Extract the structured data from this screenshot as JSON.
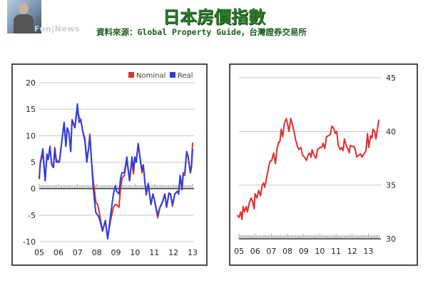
{
  "header": {
    "title": "日本房價指數",
    "subtitle": "資料來源：Global Property Guide，台灣證券交易所",
    "watermark": "Fun|News"
  },
  "colors": {
    "title": "#2c7a2c",
    "nominal": "#e0302a",
    "real": "#2a3fe0",
    "index": "#e0302a",
    "grid": "#c8c8c8"
  },
  "chart_data": [
    {
      "type": "line",
      "legend": "top-right",
      "grid": true,
      "xlim": [
        2005,
        2013
      ],
      "ylim": [
        -10,
        20
      ],
      "xticks": [
        {
          "v": 2005,
          "label": "05"
        },
        {
          "v": 2006,
          "label": "06"
        },
        {
          "v": 2007,
          "label": "07"
        },
        {
          "v": 2008,
          "label": "08"
        },
        {
          "v": 2009,
          "label": "09"
        },
        {
          "v": 2010,
          "label": "10"
        },
        {
          "v": 2011,
          "label": "11"
        },
        {
          "v": 2012,
          "label": "12"
        },
        {
          "v": 2013,
          "label": "13"
        }
      ],
      "yticks": [
        {
          "v": 20,
          "label": "20"
        },
        {
          "v": 15,
          "label": "15"
        },
        {
          "v": 10,
          "label": "10"
        },
        {
          "v": 5,
          "label": "5"
        },
        {
          "v": 0,
          "label": "0"
        },
        {
          "v": -5,
          "label": "-5"
        },
        {
          "v": -10,
          "label": "-10"
        }
      ],
      "x": [
        2005.0,
        2005.06,
        2005.19,
        2005.31,
        2005.4,
        2005.47,
        2005.56,
        2005.65,
        2005.74,
        2005.81,
        2005.89,
        2006.05,
        2006.18,
        2006.3,
        2006.39,
        2006.46,
        2006.55,
        2006.64,
        2006.71,
        2006.86,
        2006.99,
        2007.08,
        2007.17,
        2007.26,
        2007.38,
        2007.48,
        2007.57,
        2007.64,
        2007.73,
        2007.82,
        2007.95,
        2008.05,
        2008.13,
        2008.3,
        2008.45,
        2008.57,
        2008.72,
        2008.87,
        2008.97,
        2009.04,
        2009.16,
        2009.24,
        2009.32,
        2009.44,
        2009.57,
        2009.71,
        2009.84,
        2009.91,
        2009.99,
        2010.06,
        2010.16,
        2010.27,
        2010.36,
        2010.43,
        2010.52,
        2010.58,
        2010.68,
        2010.83,
        2010.93,
        2011.03,
        2011.18,
        2011.3,
        2011.43,
        2011.55,
        2011.64,
        2011.76,
        2011.85,
        2011.95,
        2012.07,
        2012.2,
        2012.27,
        2012.35,
        2012.44,
        2012.51,
        2012.59,
        2012.69,
        2012.77,
        2012.88,
        2012.94,
        2013.0
      ],
      "series": [
        {
          "name": "Nominal",
          "color": "#e0302a",
          "values": [
            1.8,
            5,
            6.5,
            1.5,
            6.5,
            5.5,
            7.8,
            4.5,
            4,
            7.8,
            5.5,
            5,
            9,
            12.5,
            8,
            11.5,
            10.5,
            7,
            13,
            11.5,
            15,
            13.5,
            13,
            11,
            9.5,
            5.5,
            7.5,
            10.3,
            5,
            1.5,
            -2.5,
            -3,
            -4.5,
            -8,
            -6,
            -9.3,
            -6,
            -3.5,
            -3,
            -3,
            -3.5,
            0,
            2,
            2.5,
            5.5,
            1.5,
            5.5,
            2.8,
            5.5,
            5,
            8.5,
            5.5,
            3,
            4.5,
            1,
            -1.2,
            0.8,
            -3,
            -1,
            -2.5,
            -5.5,
            -3.5,
            -2.5,
            -1,
            -3.5,
            -0.8,
            -1,
            -3.3,
            -1,
            -0.5,
            -1,
            2.5,
            -0.2,
            2.5,
            2.5,
            7,
            6,
            3,
            4.5,
            8.7
          ]
        },
        {
          "name": "Real",
          "color": "#2a3fe0",
          "values": [
            2,
            5,
            7.5,
            1.5,
            6.5,
            5.5,
            8,
            4.5,
            4,
            7.5,
            5,
            5,
            9,
            12.5,
            8,
            11.5,
            10.5,
            7,
            13,
            11.5,
            16,
            12.5,
            13,
            11,
            9,
            5,
            7.5,
            10,
            5,
            0,
            -4.5,
            -5,
            -5.5,
            -8,
            -6,
            -9.5,
            -5,
            -1,
            0.5,
            -0.5,
            -1,
            2,
            3,
            3,
            6,
            1.5,
            6,
            3.5,
            6,
            5,
            8.5,
            5.5,
            3.5,
            4.5,
            1,
            -1,
            1,
            -3,
            -1,
            -2.5,
            -5,
            -3.5,
            -2.5,
            -1,
            -3.5,
            -1,
            -1,
            -3,
            -1,
            -0.5,
            -1,
            2.5,
            0,
            3,
            3,
            7,
            6,
            3,
            4,
            7.5
          ]
        }
      ]
    },
    {
      "type": "line",
      "grid": true,
      "xlim": [
        2004.85,
        2013.69
      ],
      "ylim": [
        30,
        45
      ],
      "y_axis_side": "right",
      "xticks": [
        {
          "v": 2005,
          "label": "05"
        },
        {
          "v": 2006,
          "label": "06"
        },
        {
          "v": 2007,
          "label": "07"
        },
        {
          "v": 2008,
          "label": "08"
        },
        {
          "v": 2009,
          "label": "09"
        },
        {
          "v": 2010,
          "label": "10"
        },
        {
          "v": 2011,
          "label": "11"
        },
        {
          "v": 2012,
          "label": "12"
        },
        {
          "v": 2013,
          "label": "13"
        }
      ],
      "yticks": [
        {
          "v": 45,
          "label": "45"
        },
        {
          "v": 40,
          "label": "40"
        },
        {
          "v": 35,
          "label": "35"
        },
        {
          "v": 30,
          "label": "30"
        }
      ],
      "x": [
        2004.9,
        2005.0,
        2005.1,
        2005.18,
        2005.25,
        2005.34,
        2005.44,
        2005.52,
        2005.63,
        2005.74,
        2005.84,
        2005.93,
        2005.99,
        2006.1,
        2006.22,
        2006.33,
        2006.43,
        2006.52,
        2006.59,
        2006.72,
        2006.81,
        2006.91,
        2007.02,
        2007.14,
        2007.25,
        2007.36,
        2007.46,
        2007.52,
        2007.61,
        2007.7,
        2007.8,
        2007.92,
        2007.99,
        2008.09,
        2008.2,
        2008.31,
        2008.4,
        2008.49,
        2008.61,
        2008.7,
        2008.83,
        2008.93,
        2009.05,
        2009.17,
        2009.27,
        2009.37,
        2009.46,
        2009.52,
        2009.64,
        2009.76,
        2009.86,
        2010.01,
        2010.11,
        2010.2,
        2010.3,
        2010.41,
        2010.52,
        2010.64,
        2010.74,
        2010.85,
        2010.94,
        2011.04,
        2011.14,
        2011.26,
        2011.36,
        2011.44,
        2011.52,
        2011.63,
        2011.73,
        2011.82,
        2011.88,
        2012.0,
        2012.11,
        2012.17,
        2012.29,
        2012.41,
        2012.51,
        2012.61,
        2012.73,
        2012.85,
        2012.95,
        2013.03,
        2013.14,
        2013.22,
        2013.29,
        2013.39,
        2013.47,
        2013.54,
        2013.65
      ],
      "series": [
        {
          "color": "#e0302a",
          "values": [
            32.2,
            32,
            32.5,
            31.8,
            33,
            32.5,
            33,
            32.5,
            33.3,
            33.8,
            33.5,
            32.8,
            34.2,
            33.8,
            34.5,
            34,
            35,
            35.2,
            34.8,
            35.8,
            36.5,
            37.2,
            37.3,
            38,
            37,
            38.5,
            39,
            39,
            40.2,
            39.5,
            40.7,
            41.2,
            40.8,
            40,
            41.2,
            40.6,
            40,
            39.3,
            38.6,
            38.3,
            38.5,
            37.8,
            37.6,
            37.3,
            37.8,
            38,
            37.6,
            38.3,
            37.8,
            37.5,
            38.3,
            38.5,
            38.5,
            38.9,
            38.4,
            39.5,
            39.6,
            39.7,
            40.5,
            40.3,
            39.8,
            40,
            38.7,
            38.3,
            38.5,
            38.2,
            39.3,
            38.7,
            38.4,
            38,
            38.7,
            38.6,
            38.6,
            38.4,
            37.6,
            37.8,
            37.9,
            37.6,
            37.9,
            38.2,
            39.8,
            38.5,
            39.6,
            39.4,
            40.2,
            40,
            39.3,
            40,
            41.1
          ]
        }
      ]
    }
  ]
}
